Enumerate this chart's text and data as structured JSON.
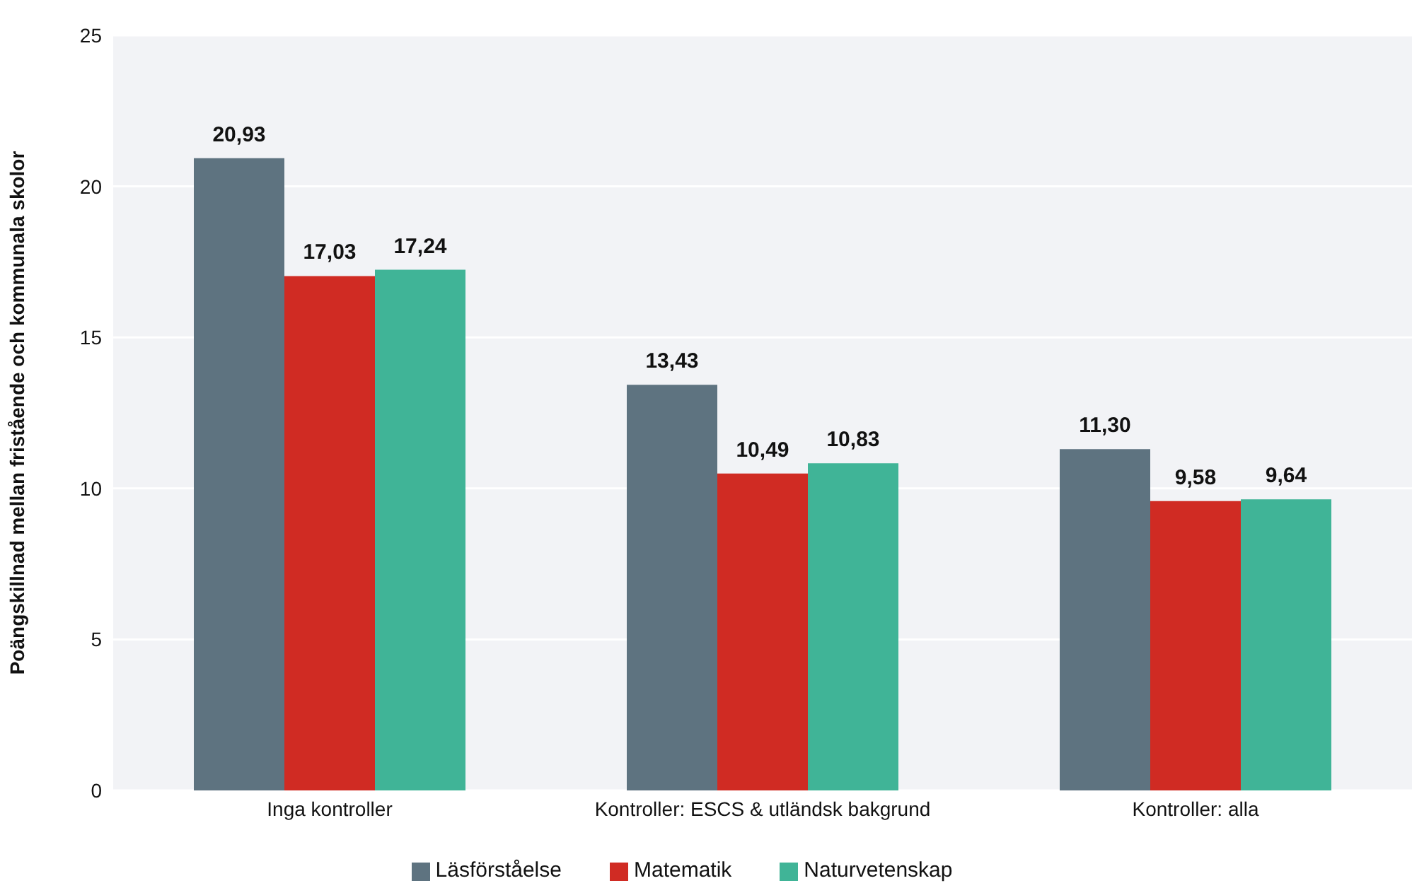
{
  "chart_data": {
    "type": "bar",
    "ylabel": "Poängskillnad mellan fristående och kommunala skolor",
    "categories": [
      "Inga kontroller",
      "Kontroller: ESCS & utländsk bakgrund",
      "Kontroller: alla"
    ],
    "series": [
      {
        "name": "Läsförståelse",
        "color": "#5e7380",
        "values": [
          20.93,
          13.43,
          11.3
        ],
        "value_labels": [
          "20,93",
          "13,43",
          "11,30"
        ]
      },
      {
        "name": "Matematik",
        "color": "#d02b23",
        "values": [
          17.03,
          10.49,
          9.58
        ],
        "value_labels": [
          "17,03",
          "10,49",
          "9,58"
        ]
      },
      {
        "name": "Naturvetenskap",
        "color": "#40b497",
        "values": [
          17.24,
          10.83,
          9.64
        ],
        "value_labels": [
          "17,24",
          "10,83",
          "9,64"
        ]
      }
    ],
    "ylim": [
      0,
      25
    ],
    "yticks": [
      0,
      5,
      10,
      15,
      20,
      25
    ],
    "grid": "y",
    "legend": "bottom"
  }
}
